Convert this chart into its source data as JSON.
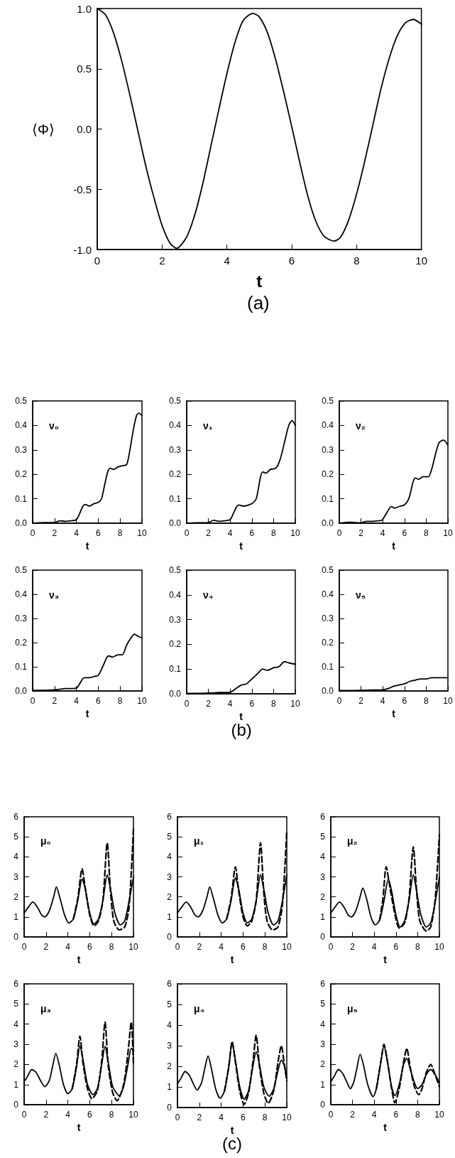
{
  "chart_data": [
    {
      "type": "line",
      "xlabel": "t",
      "ylabel": "⟨Φ⟩",
      "annotations": [
        "(a)"
      ],
      "xlim": [
        0,
        10
      ],
      "xticks": [
        0,
        2,
        4,
        6,
        8,
        10
      ],
      "ylim": [
        -1,
        1
      ],
      "yticks": [
        {
          "value": -1,
          "label": "-1.0"
        },
        -0.5,
        {
          "value": 0,
          "label": "0.0"
        },
        0.5,
        {
          "value": 1,
          "label": "1.0"
        }
      ],
      "series": [
        {
          "color": "#000000",
          "x": [
            0,
            0.25,
            0.5,
            0.75,
            1,
            1.25,
            1.5,
            1.75,
            2,
            2.25,
            2.45,
            2.75,
            3,
            3.25,
            3.5,
            3.75,
            4,
            4.25,
            4.5,
            4.8,
            5,
            5.25,
            5.5,
            5.75,
            6,
            6.25,
            6.5,
            6.75,
            7,
            7.3,
            7.5,
            7.75,
            8,
            8.25,
            8.5,
            8.75,
            9,
            9.25,
            9.5,
            9.75,
            10
          ],
          "values": [
            1,
            0.95,
            0.8,
            0.57,
            0.29,
            -0.01,
            -0.31,
            -0.57,
            -0.8,
            -0.95,
            -0.99,
            -0.9,
            -0.72,
            -0.46,
            -0.15,
            0.16,
            0.46,
            0.72,
            0.9,
            0.96,
            0.93,
            0.8,
            0.58,
            0.31,
            0.02,
            -0.28,
            -0.56,
            -0.77,
            -0.89,
            -0.93,
            -0.9,
            -0.76,
            -0.54,
            -0.27,
            0.03,
            0.33,
            0.58,
            0.77,
            0.88,
            0.91,
            0.87
          ]
        }
      ]
    },
    {
      "type": "line",
      "title": "ν₀",
      "xlabel": "t",
      "xlim": [
        0,
        10
      ],
      "xticks": [
        0,
        2,
        4,
        6,
        8,
        10
      ],
      "ylim": [
        0,
        0.5
      ],
      "yticks": [
        {
          "value": 0,
          "label": "0.0"
        },
        0.1,
        0.2,
        0.3,
        0.4,
        0.5
      ],
      "series": [
        {
          "color": "#000000",
          "x": [
            0,
            1,
            2,
            2.5,
            3,
            3.5,
            4,
            4.3,
            4.6,
            4.8,
            5.2,
            5.6,
            6,
            6.3,
            6.6,
            6.9,
            7.1,
            7.4,
            7.8,
            8.2,
            8.6,
            8.9,
            9.2,
            9.5,
            9.7,
            10
          ],
          "values": [
            0,
            0.003,
            0.003,
            0.01,
            0.008,
            0.01,
            0.015,
            0.04,
            0.07,
            0.077,
            0.07,
            0.08,
            0.085,
            0.1,
            0.16,
            0.215,
            0.225,
            0.22,
            0.23,
            0.235,
            0.24,
            0.3,
            0.38,
            0.44,
            0.45,
            0.44
          ]
        }
      ]
    },
    {
      "type": "line",
      "title": "ν₁",
      "xlabel": "t",
      "xlim": [
        0,
        10
      ],
      "xticks": [
        0,
        2,
        4,
        6,
        8,
        10
      ],
      "ylim": [
        0,
        0.5
      ],
      "yticks": [
        {
          "value": 0,
          "label": "0.0"
        },
        0.1,
        0.2,
        0.3,
        0.4,
        0.5
      ],
      "series": [
        {
          "color": "#000000",
          "x": [
            0,
            1,
            2,
            2.5,
            3,
            3.5,
            4,
            4.3,
            4.6,
            4.8,
            5.2,
            6,
            6.4,
            6.8,
            7,
            7.3,
            7.7,
            8.2,
            8.6,
            9,
            9.4,
            9.7,
            10
          ],
          "values": [
            0,
            0.002,
            0.003,
            0.012,
            0.008,
            0.01,
            0.015,
            0.04,
            0.068,
            0.075,
            0.07,
            0.08,
            0.1,
            0.19,
            0.21,
            0.205,
            0.22,
            0.225,
            0.26,
            0.33,
            0.4,
            0.42,
            0.4
          ]
        }
      ]
    },
    {
      "type": "line",
      "title": "ν₂",
      "xlabel": "t",
      "xlim": [
        0,
        10
      ],
      "xticks": [
        0,
        2,
        4,
        6,
        8,
        10
      ],
      "ylim": [
        0,
        0.5
      ],
      "yticks": [
        {
          "value": 0,
          "label": "0.0"
        },
        0.1,
        0.2,
        0.3,
        0.4,
        0.5
      ],
      "series": [
        {
          "color": "#000000",
          "x": [
            0,
            1,
            2,
            2.5,
            3,
            3.5,
            3.9,
            4.2,
            4.6,
            4.8,
            5.1,
            5.6,
            6,
            6.4,
            6.8,
            7,
            7.3,
            7.7,
            8.2,
            8.5,
            8.9,
            9.2,
            9.6,
            10
          ],
          "values": [
            0,
            0.004,
            0.002,
            0.008,
            0.008,
            0.01,
            0.012,
            0.03,
            0.06,
            0.068,
            0.062,
            0.07,
            0.075,
            0.1,
            0.17,
            0.185,
            0.18,
            0.19,
            0.19,
            0.22,
            0.29,
            0.33,
            0.34,
            0.32
          ]
        }
      ]
    },
    {
      "type": "line",
      "title": "ν₃",
      "xlabel": "t",
      "xlim": [
        0,
        10
      ],
      "xticks": [
        0,
        2,
        4,
        6,
        8,
        10
      ],
      "ylim": [
        0,
        0.5
      ],
      "yticks": [
        {
          "value": 0,
          "label": "0.0"
        },
        0.1,
        0.2,
        0.3,
        0.4,
        0.5
      ],
      "series": [
        {
          "color": "#000000",
          "x": [
            0,
            1,
            2,
            3,
            4,
            4.3,
            4.7,
            5.2,
            5.6,
            6,
            6.4,
            6.8,
            7,
            7.3,
            7.8,
            8.2,
            8.6,
            9,
            9.3,
            9.7,
            10
          ],
          "values": [
            0.003,
            0.003,
            0.005,
            0.01,
            0.012,
            0.03,
            0.055,
            0.055,
            0.06,
            0.065,
            0.1,
            0.14,
            0.145,
            0.14,
            0.15,
            0.15,
            0.19,
            0.22,
            0.235,
            0.225,
            0.22
          ]
        }
      ]
    },
    {
      "type": "line",
      "title": "ν₄",
      "xlabel": "t",
      "annotations": [
        "(b)"
      ],
      "xlim": [
        0,
        10
      ],
      "xticks": [
        0,
        2,
        4,
        6,
        8,
        10
      ],
      "ylim": [
        0,
        0.5
      ],
      "yticks": [
        {
          "value": 0,
          "label": "0.0"
        },
        0.1,
        0.2,
        0.3,
        0.4,
        0.5
      ],
      "series": [
        {
          "color": "#000000",
          "x": [
            0,
            1,
            2,
            3,
            4,
            4.5,
            5,
            5.5,
            6,
            6.5,
            7,
            7.4,
            8,
            8.5,
            9,
            9.4,
            10
          ],
          "values": [
            0.002,
            0.002,
            0.003,
            0.005,
            0.006,
            0.02,
            0.035,
            0.04,
            0.06,
            0.08,
            0.1,
            0.095,
            0.105,
            0.11,
            0.13,
            0.125,
            0.12
          ]
        }
      ]
    },
    {
      "type": "line",
      "title": "ν₅",
      "xlabel": "t",
      "xlim": [
        0,
        10
      ],
      "xticks": [
        0,
        2,
        4,
        6,
        8,
        10
      ],
      "ylim": [
        0,
        0.5
      ],
      "yticks": [
        {
          "value": 0,
          "label": "0.0"
        },
        0.1,
        0.2,
        0.3,
        0.4,
        0.5
      ],
      "series": [
        {
          "color": "#000000",
          "x": [
            0,
            1,
            2,
            3,
            4,
            4.5,
            5,
            5.5,
            6,
            6.5,
            7,
            7.5,
            8,
            8.5,
            9,
            10
          ],
          "values": [
            0.002,
            0.002,
            0.003,
            0.004,
            0.005,
            0.01,
            0.02,
            0.025,
            0.03,
            0.04,
            0.045,
            0.05,
            0.05,
            0.055,
            0.055,
            0.055
          ]
        }
      ]
    },
    {
      "type": "line",
      "title": "μ₀",
      "xlabel": "t",
      "xlim": [
        0,
        10
      ],
      "xticks": [
        0,
        2,
        4,
        6,
        8,
        10
      ],
      "ylim": [
        0,
        6
      ],
      "yticks": [
        0,
        1,
        2,
        3,
        4,
        5,
        6
      ],
      "series": [
        {
          "color": "#000000",
          "x": [
            0,
            0.4,
            0.8,
            1.2,
            1.6,
            1.9,
            2.3,
            2.7,
            2.95,
            3.3,
            3.7,
            4.1,
            4.5,
            4.9,
            5.3,
            5.6,
            6,
            6.4,
            6.8,
            7.2,
            7.6,
            7.9,
            8.3,
            8.8,
            9.2,
            9.6,
            10
          ],
          "values": [
            1.2,
            1.5,
            1.75,
            1.5,
            1.1,
            1,
            1.3,
            2,
            2.5,
            1.9,
            1.1,
            0.7,
            0.9,
            1.8,
            2.9,
            2.4,
            1.2,
            0.65,
            0.9,
            1.8,
            3.1,
            2.4,
            1.2,
            0.6,
            0.8,
            1.8,
            3
          ]
        },
        {
          "color": "#000000",
          "line_style": "dashed",
          "x": [
            4.5,
            4.9,
            5.3,
            5.6,
            6,
            6.4,
            6.8,
            7.2,
            7.6,
            7.9,
            8.2,
            8.7,
            9.2,
            9.6,
            10
          ],
          "values": [
            0.9,
            1.9,
            3.4,
            2.4,
            1.1,
            0.55,
            0.8,
            1.8,
            4.7,
            2.3,
            0.8,
            0.35,
            0.5,
            1.5,
            5.4
          ]
        }
      ]
    },
    {
      "type": "line",
      "title": "μ₁",
      "xlabel": "t",
      "xlim": [
        0,
        10
      ],
      "xticks": [
        0,
        2,
        4,
        6,
        8,
        10
      ],
      "ylim": [
        0,
        6
      ],
      "yticks": [
        0,
        1,
        2,
        3,
        4,
        5,
        6
      ],
      "series": [
        {
          "color": "#000000",
          "x": [
            0,
            0.4,
            0.8,
            1.2,
            1.6,
            1.9,
            2.3,
            2.7,
            2.95,
            3.3,
            3.7,
            4.1,
            4.5,
            4.9,
            5.3,
            5.6,
            6,
            6.4,
            6.8,
            7.2,
            7.6,
            7.9,
            8.3,
            8.8,
            9.2,
            9.6,
            10
          ],
          "values": [
            1.2,
            1.5,
            1.75,
            1.5,
            1.1,
            1,
            1.3,
            2,
            2.5,
            1.9,
            1.1,
            0.7,
            0.9,
            1.8,
            2.95,
            2.4,
            1.2,
            0.7,
            0.9,
            1.8,
            3.1,
            2.4,
            1.2,
            0.6,
            0.8,
            1.8,
            3.1
          ]
        },
        {
          "color": "#000000",
          "line_style": "dashed",
          "x": [
            4.5,
            4.9,
            5.3,
            5.6,
            6,
            6.4,
            6.8,
            7.2,
            7.6,
            7.9,
            8.2,
            8.7,
            9.2,
            9.6,
            10
          ],
          "values": [
            0.9,
            1.9,
            3.5,
            2.3,
            1,
            0.55,
            0.8,
            1.8,
            4.7,
            2.2,
            0.8,
            0.35,
            0.5,
            1.6,
            5.3
          ]
        }
      ]
    },
    {
      "type": "line",
      "title": "μ₂",
      "xlabel": "t",
      "xlim": [
        0,
        10
      ],
      "xticks": [
        0,
        2,
        4,
        6,
        8,
        10
      ],
      "ylim": [
        0,
        6
      ],
      "yticks": [
        0,
        1,
        2,
        3,
        4,
        5,
        6
      ],
      "series": [
        {
          "color": "#000000",
          "x": [
            0,
            0.4,
            0.8,
            1.2,
            1.6,
            1.9,
            2.3,
            2.7,
            2.95,
            3.3,
            3.7,
            4.1,
            4.5,
            4.9,
            5.3,
            5.6,
            6,
            6.4,
            6.8,
            7.2,
            7.6,
            7.9,
            8.3,
            8.8,
            9.2,
            9.6,
            10
          ],
          "values": [
            1.2,
            1.5,
            1.75,
            1.5,
            1.1,
            1,
            1.3,
            2,
            2.45,
            1.9,
            1,
            0.6,
            0.85,
            1.8,
            2.9,
            2.3,
            1.1,
            0.5,
            0.8,
            1.8,
            3.1,
            2.3,
            1.1,
            0.5,
            0.7,
            1.7,
            3
          ]
        },
        {
          "color": "#000000",
          "line_style": "dashed",
          "x": [
            4.5,
            4.8,
            5.1,
            5.5,
            6,
            6.3,
            6.8,
            7.2,
            7.6,
            7.9,
            8.2,
            8.8,
            9.2,
            9.6,
            10
          ],
          "values": [
            0.85,
            1.9,
            3.5,
            2.3,
            0.9,
            0.45,
            0.7,
            1.9,
            4.5,
            2.3,
            0.8,
            0.3,
            0.5,
            1.8,
            5.1
          ]
        }
      ]
    },
    {
      "type": "line",
      "title": "μ₃",
      "xlabel": "t",
      "xlim": [
        0,
        10
      ],
      "xticks": [
        0,
        2,
        4,
        6,
        8,
        10
      ],
      "ylim": [
        0,
        6
      ],
      "yticks": [
        0,
        1,
        2,
        3,
        4,
        5,
        6
      ],
      "series": [
        {
          "color": "#000000",
          "x": [
            0,
            0.3,
            0.7,
            1.1,
            1.5,
            1.9,
            2.3,
            2.6,
            2.9,
            3.2,
            3.6,
            4,
            4.4,
            4.8,
            5.1,
            5.4,
            5.8,
            6.3,
            6.7,
            7.1,
            7.4,
            7.7,
            8.1,
            8.7,
            9.1,
            9.5,
            9.8,
            10
          ],
          "values": [
            1.15,
            1.4,
            1.75,
            1.6,
            1.2,
            0.9,
            1.2,
            1.9,
            2.55,
            2,
            1,
            0.55,
            0.8,
            1.9,
            2.9,
            2.2,
            1,
            0.5,
            0.8,
            2,
            2.9,
            2.1,
            0.9,
            0.45,
            0.9,
            2,
            2.8,
            2.7
          ]
        },
        {
          "color": "#000000",
          "line_style": "dashed",
          "x": [
            4.4,
            4.8,
            5.1,
            5.4,
            5.8,
            6.2,
            6.7,
            7.1,
            7.4,
            7.7,
            8.1,
            8.5,
            9.1,
            9.5,
            9.8,
            10
          ],
          "values": [
            0.8,
            2,
            3.4,
            2,
            0.8,
            0.3,
            0.7,
            2.2,
            4.1,
            1.9,
            0.6,
            0.2,
            1,
            2.6,
            4.1,
            2
          ]
        }
      ]
    },
    {
      "type": "line",
      "title": "μ₄",
      "xlabel": "t",
      "annotations": [
        "(c)"
      ],
      "xlim": [
        0,
        10
      ],
      "xticks": [
        0,
        2,
        4,
        6,
        8,
        10
      ],
      "ylim": [
        0,
        6
      ],
      "yticks": [
        0,
        1,
        2,
        3,
        4,
        5,
        6
      ],
      "series": [
        {
          "color": "#000000",
          "x": [
            0,
            0.3,
            0.7,
            1.1,
            1.5,
            1.8,
            2.2,
            2.5,
            2.8,
            3.1,
            3.5,
            3.9,
            4.3,
            4.7,
            5,
            5.3,
            5.7,
            6.1,
            6.5,
            6.9,
            7.2,
            7.5,
            7.9,
            8.4,
            8.8,
            9.2,
            9.5,
            9.8,
            10
          ],
          "values": [
            1.15,
            1.4,
            1.75,
            1.55,
            1.1,
            0.85,
            1.2,
            1.9,
            2.5,
            1.9,
            0.9,
            0.45,
            0.8,
            2,
            3.15,
            2.3,
            1,
            0.4,
            0.8,
            2,
            2.7,
            2.1,
            1,
            0.55,
            0.9,
            1.8,
            2.3,
            2,
            1.4
          ]
        },
        {
          "color": "#000000",
          "line_style": "dashed",
          "x": [
            4.3,
            4.7,
            5,
            5.3,
            5.7,
            6.1,
            6.5,
            6.9,
            7.2,
            7.5,
            7.9,
            8.3,
            8.8,
            9.2,
            9.5,
            9.8,
            10
          ],
          "values": [
            0.8,
            2,
            3.2,
            2.2,
            0.8,
            0.15,
            0.7,
            2.2,
            3.5,
            2,
            0.7,
            0.2,
            0.8,
            2.2,
            3,
            2,
            1.3
          ]
        }
      ]
    },
    {
      "type": "line",
      "title": "μ₅",
      "xlabel": "t",
      "xlim": [
        0,
        10
      ],
      "xticks": [
        0,
        2,
        4,
        6,
        8,
        10
      ],
      "ylim": [
        0,
        6
      ],
      "yticks": [
        0,
        1,
        2,
        3,
        4,
        5,
        6
      ],
      "series": [
        {
          "color": "#000000",
          "x": [
            0,
            0.3,
            0.7,
            1.1,
            1.5,
            1.8,
            2.1,
            2.4,
            2.7,
            3,
            3.4,
            3.9,
            4.2,
            4.6,
            4.9,
            5.2,
            5.6,
            5.9,
            6.3,
            6.7,
            7,
            7.3,
            7.7,
            8,
            8.4,
            8.8,
            9.2,
            9.6,
            10
          ],
          "values": [
            1.15,
            1.4,
            1.75,
            1.55,
            1.1,
            0.8,
            1.1,
            1.8,
            2.5,
            2,
            1,
            0.4,
            0.8,
            2.1,
            2.9,
            2.2,
            0.9,
            0.45,
            1,
            2,
            2.3,
            1.8,
            1.1,
            0.8,
            1,
            1.5,
            1.75,
            1.5,
            1.1
          ]
        },
        {
          "color": "#000000",
          "line_style": "dashed",
          "x": [
            4.2,
            4.6,
            4.9,
            5.2,
            5.6,
            5.9,
            6.3,
            6.7,
            7,
            7.3,
            7.7,
            8.1,
            8.4,
            8.8,
            9.2,
            9.6,
            10
          ],
          "values": [
            0.8,
            2.1,
            3,
            2.2,
            0.8,
            0.1,
            0.8,
            2.1,
            2.8,
            1.9,
            0.9,
            0.5,
            0.8,
            1.6,
            2,
            1.5,
            0.9
          ]
        }
      ]
    }
  ]
}
